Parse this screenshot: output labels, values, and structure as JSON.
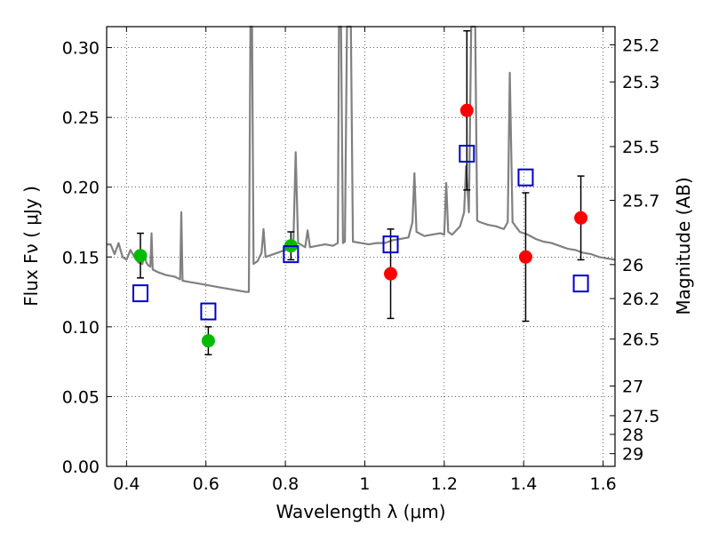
{
  "chart_data": {
    "type": "scatter",
    "xlabel": "Wavelength  λ (μm)",
    "ylabel": "Flux  Fν  ( μJy )",
    "y2label": "Magnitude (AB)",
    "xlim": [
      0.35,
      1.63
    ],
    "ylim": [
      0.0,
      0.315
    ],
    "x_ticks": [
      0.4,
      0.6,
      0.8,
      1.0,
      1.2,
      1.4,
      1.6
    ],
    "x_tick_labels": [
      "0.4",
      "0.6",
      "0.8",
      "1",
      "1.2",
      "1.4",
      "1.6"
    ],
    "y_ticks": [
      0.0,
      0.05,
      0.1,
      0.15,
      0.2,
      0.25,
      0.3
    ],
    "y_tick_labels": [
      "0.00",
      "0.05",
      "0.10",
      "0.15",
      "0.20",
      "0.25",
      "0.30"
    ],
    "y2_ticks": [
      25.2,
      25.3,
      25.5,
      25.7,
      26,
      26.2,
      26.5,
      27,
      27.5,
      28,
      29
    ],
    "y2_tick_labels": [
      "25.2",
      "25.3",
      "25.5",
      "25.7",
      "26",
      "26.2",
      "26.5",
      "27",
      "27.5",
      "28",
      "29"
    ],
    "grid": true,
    "colors": {
      "green_points": "#00bb00",
      "red_points": "#ff0000",
      "model_squares": "#0000cc",
      "spectrum": "#808080",
      "errorbar": "#000000"
    },
    "series": [
      {
        "marker": "circle",
        "color": "#00bb00",
        "points": [
          {
            "x": 0.435,
            "y": 0.151,
            "err": 0.016
          },
          {
            "x": 0.606,
            "y": 0.09,
            "err": 0.01
          },
          {
            "x": 0.814,
            "y": 0.158,
            "err": 0.01
          }
        ]
      },
      {
        "marker": "circle",
        "color": "#ff0000",
        "points": [
          {
            "x": 1.065,
            "y": 0.138,
            "err": 0.032
          },
          {
            "x": 1.257,
            "y": 0.255,
            "err": 0.057
          },
          {
            "x": 1.405,
            "y": 0.15,
            "err": 0.046
          },
          {
            "x": 1.544,
            "y": 0.178,
            "err": 0.03
          }
        ]
      },
      {
        "marker": "open-square",
        "color": "#0000cc",
        "points": [
          {
            "x": 0.435,
            "y": 0.124
          },
          {
            "x": 0.606,
            "y": 0.111
          },
          {
            "x": 0.814,
            "y": 0.152
          },
          {
            "x": 1.065,
            "y": 0.159
          },
          {
            "x": 1.257,
            "y": 0.224
          },
          {
            "x": 1.405,
            "y": 0.207
          },
          {
            "x": 1.544,
            "y": 0.131
          }
        ]
      }
    ],
    "spectrum": [
      [
        0.35,
        0.159
      ],
      [
        0.36,
        0.159
      ],
      [
        0.37,
        0.152
      ],
      [
        0.38,
        0.16
      ],
      [
        0.39,
        0.15
      ],
      [
        0.4,
        0.148
      ],
      [
        0.41,
        0.155
      ],
      [
        0.42,
        0.15
      ],
      [
        0.43,
        0.146
      ],
      [
        0.44,
        0.145
      ],
      [
        0.445,
        0.152
      ],
      [
        0.45,
        0.146
      ],
      [
        0.455,
        0.144
      ],
      [
        0.46,
        0.143
      ],
      [
        0.463,
        0.167
      ],
      [
        0.466,
        0.141
      ],
      [
        0.48,
        0.139
      ],
      [
        0.5,
        0.137
      ],
      [
        0.52,
        0.136
      ],
      [
        0.535,
        0.134
      ],
      [
        0.538,
        0.182
      ],
      [
        0.541,
        0.133
      ],
      [
        0.56,
        0.132
      ],
      [
        0.58,
        0.131
      ],
      [
        0.6,
        0.13
      ],
      [
        0.62,
        0.129
      ],
      [
        0.64,
        0.128
      ],
      [
        0.66,
        0.127
      ],
      [
        0.68,
        0.126
      ],
      [
        0.7,
        0.125
      ],
      [
        0.708,
        0.125
      ],
      [
        0.712,
        0.315
      ],
      [
        0.716,
        0.315
      ],
      [
        0.72,
        0.145
      ],
      [
        0.73,
        0.147
      ],
      [
        0.74,
        0.153
      ],
      [
        0.745,
        0.17
      ],
      [
        0.75,
        0.15
      ],
      [
        0.76,
        0.151
      ],
      [
        0.78,
        0.153
      ],
      [
        0.8,
        0.155
      ],
      [
        0.82,
        0.158
      ],
      [
        0.826,
        0.225
      ],
      [
        0.832,
        0.16
      ],
      [
        0.85,
        0.157
      ],
      [
        0.856,
        0.169
      ],
      [
        0.862,
        0.157
      ],
      [
        0.88,
        0.158
      ],
      [
        0.9,
        0.159
      ],
      [
        0.92,
        0.158
      ],
      [
        0.932,
        0.16
      ],
      [
        0.935,
        0.315
      ],
      [
        0.94,
        0.315
      ],
      [
        0.945,
        0.16
      ],
      [
        0.95,
        0.161
      ],
      [
        0.955,
        0.315
      ],
      [
        0.965,
        0.315
      ],
      [
        0.97,
        0.161
      ],
      [
        0.99,
        0.16
      ],
      [
        1.01,
        0.159
      ],
      [
        1.03,
        0.16
      ],
      [
        1.05,
        0.16
      ],
      [
        1.07,
        0.162
      ],
      [
        1.09,
        0.163
      ],
      [
        1.11,
        0.164
      ],
      [
        1.12,
        0.175
      ],
      [
        1.125,
        0.21
      ],
      [
        1.13,
        0.168
      ],
      [
        1.15,
        0.165
      ],
      [
        1.17,
        0.166
      ],
      [
        1.19,
        0.167
      ],
      [
        1.2,
        0.166
      ],
      [
        1.205,
        0.203
      ],
      [
        1.21,
        0.168
      ],
      [
        1.22,
        0.166
      ],
      [
        1.24,
        0.172
      ],
      [
        1.25,
        0.182
      ],
      [
        1.255,
        0.215
      ],
      [
        1.262,
        0.182
      ],
      [
        1.268,
        0.315
      ],
      [
        1.278,
        0.315
      ],
      [
        1.283,
        0.176
      ],
      [
        1.29,
        0.175
      ],
      [
        1.31,
        0.173
      ],
      [
        1.33,
        0.172
      ],
      [
        1.35,
        0.17
      ],
      [
        1.36,
        0.175
      ],
      [
        1.365,
        0.282
      ],
      [
        1.372,
        0.175
      ],
      [
        1.39,
        0.168
      ],
      [
        1.41,
        0.166
      ],
      [
        1.43,
        0.163
      ],
      [
        1.45,
        0.161
      ],
      [
        1.47,
        0.16
      ],
      [
        1.49,
        0.158
      ],
      [
        1.51,
        0.156
      ],
      [
        1.53,
        0.155
      ],
      [
        1.55,
        0.153
      ],
      [
        1.57,
        0.152
      ],
      [
        1.59,
        0.15
      ],
      [
        1.61,
        0.149
      ],
      [
        1.63,
        0.148
      ]
    ]
  }
}
